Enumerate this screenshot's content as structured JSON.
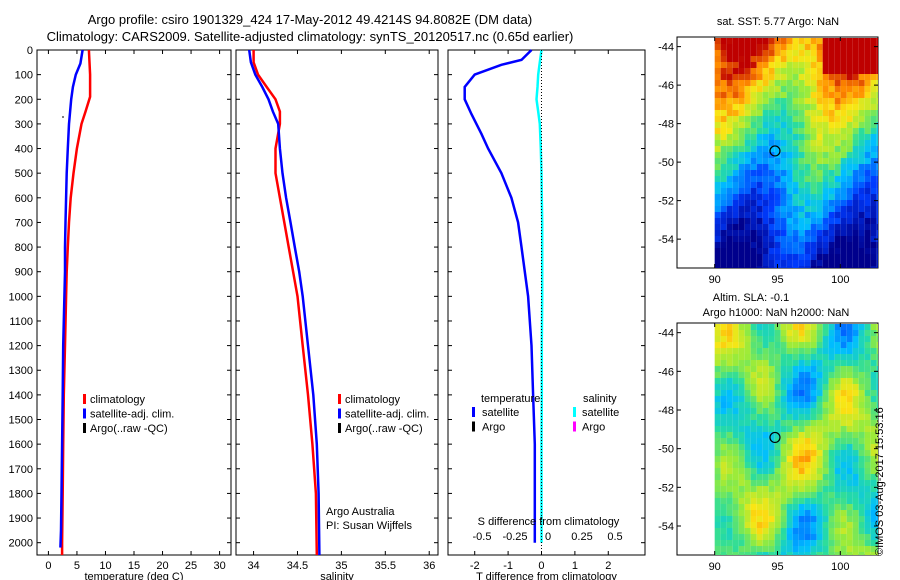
{
  "header": {
    "line1": "Argo profile: csiro 1901329_424 17-May-2012 49.4214S 94.8082E (DM data)",
    "line2": "Climatology: CARS2009. Satellite-adjusted climatology: synTS_20120517.nc (0.65d earlier)"
  },
  "colors": {
    "climatology": "#ff0000",
    "satellite": "#0000ff",
    "argo": "#000000",
    "sal_satellite": "#00ffff",
    "sal_argo": "#ff00ff"
  },
  "chart_data": [
    {
      "type": "line",
      "id": "temperature",
      "xlabel": "temperature (deg C)",
      "ylabel": "",
      "xlim": [
        -2,
        32
      ],
      "ylim": [
        2050,
        0
      ],
      "xticks": [
        0,
        5,
        10,
        15,
        20,
        25,
        30
      ],
      "yticks": [
        0,
        100,
        200,
        300,
        400,
        500,
        600,
        700,
        800,
        900,
        1000,
        1100,
        1200,
        1300,
        1400,
        1500,
        1600,
        1700,
        1800,
        1900,
        2000
      ],
      "legend": [
        "climatology",
        "satellite-adj. clim.",
        "Argo(..raw -QC)"
      ],
      "legend_position": "lower-center",
      "series": [
        {
          "name": "climatology",
          "depth": [
            0,
            50,
            100,
            150,
            190,
            250,
            300,
            400,
            500,
            600,
            700,
            800,
            900,
            1000,
            1200,
            1400,
            1600,
            1800,
            2000,
            2050
          ],
          "values": [
            7.1,
            7.2,
            7.3,
            7.3,
            7.3,
            6.5,
            5.8,
            5.0,
            4.4,
            3.9,
            3.6,
            3.4,
            3.2,
            3.1,
            2.9,
            2.7,
            2.6,
            2.5,
            2.4,
            2.4
          ]
        },
        {
          "name": "satellite-adj. clim.",
          "depth": [
            0,
            55,
            100,
            150,
            200,
            250,
            300,
            400,
            500,
            600,
            700,
            800,
            900,
            1000,
            1200,
            1400,
            1600,
            1800,
            1950,
            2020
          ],
          "values": [
            6.0,
            5.6,
            4.8,
            4.3,
            4.0,
            3.8,
            3.6,
            3.4,
            3.2,
            3.1,
            3.0,
            2.9,
            2.9,
            2.8,
            2.6,
            2.5,
            2.4,
            2.3,
            2.2,
            2.1
          ]
        }
      ]
    },
    {
      "type": "line",
      "id": "salinity",
      "xlabel": "salinity",
      "xlim": [
        33.8,
        36.1
      ],
      "ylim": [
        2050,
        0
      ],
      "xticks": [
        34,
        34.5,
        35,
        35.5,
        36
      ],
      "legend": [
        "climatology",
        "satellite-adj. clim.",
        "Argo(..raw -QC)"
      ],
      "legend_position": "lower-right",
      "annotations": [
        "Argo Australia",
        "PI: Susan Wijffels"
      ],
      "series": [
        {
          "name": "climatology",
          "depth": [
            0,
            50,
            100,
            150,
            200,
            250,
            300,
            400,
            500,
            600,
            700,
            800,
            900,
            1000,
            1200,
            1400,
            1600,
            1800,
            2050
          ],
          "values": [
            34.0,
            34.0,
            34.05,
            34.15,
            34.25,
            34.3,
            34.3,
            34.25,
            34.25,
            34.3,
            34.35,
            34.4,
            34.45,
            34.5,
            34.56,
            34.62,
            34.67,
            34.71,
            34.72
          ]
        },
        {
          "name": "satellite-adj. clim.",
          "depth": [
            0,
            50,
            100,
            150,
            200,
            250,
            300,
            400,
            500,
            600,
            700,
            800,
            900,
            1000,
            1200,
            1400,
            1600,
            1800,
            2050
          ],
          "values": [
            33.95,
            33.97,
            34.02,
            34.1,
            34.17,
            34.22,
            34.28,
            34.3,
            34.33,
            34.37,
            34.42,
            34.47,
            34.52,
            34.56,
            34.62,
            34.68,
            34.72,
            34.74,
            34.75
          ]
        }
      ]
    },
    {
      "type": "line",
      "id": "difference",
      "xlabel": "T difference from climatology",
      "toplabel": "S difference from climatology",
      "xlim": [
        -2.8,
        3.1
      ],
      "ylim": [
        2050,
        0
      ],
      "xticks": [
        -2,
        -1,
        0,
        1,
        2
      ],
      "topticks": [
        "-0.5",
        "-0.25",
        "0",
        "0.25",
        "0.5"
      ],
      "legend_left_title": "temperature",
      "legend_right_title": "salinity",
      "legend_left": [
        "satellite",
        "Argo"
      ],
      "legend_right": [
        "satellite",
        "Argo"
      ],
      "series": [
        {
          "name": "temperature satellite",
          "depth": [
            0,
            40,
            60,
            100,
            150,
            200,
            260,
            340,
            400,
            500,
            600,
            700,
            800,
            900,
            1000,
            1200,
            1400,
            1600,
            1800,
            2000
          ],
          "values": [
            -0.3,
            -0.6,
            -1.2,
            -2.0,
            -2.3,
            -2.3,
            -2.1,
            -1.8,
            -1.6,
            -1.2,
            -0.9,
            -0.7,
            -0.6,
            -0.5,
            -0.4,
            -0.3,
            -0.25,
            -0.2,
            -0.2,
            -0.2
          ]
        },
        {
          "name": "salinity satellite",
          "depth": [
            0,
            50,
            100,
            150,
            200,
            250,
            300,
            400,
            500,
            600,
            700,
            800,
            900,
            1000,
            1200,
            1400,
            1600,
            1800,
            2000
          ],
          "values": [
            0.0,
            -0.05,
            -0.1,
            -0.12,
            -0.15,
            -0.1,
            -0.05,
            -0.02,
            0.0,
            0.01,
            0.02,
            0.02,
            0.02,
            0.02,
            0.01,
            0.01,
            0.0,
            0.0,
            0.0
          ]
        }
      ]
    },
    {
      "type": "heatmap",
      "id": "sst-map",
      "title": "sat. SST: 5.77 Argo: NaN",
      "xlim": [
        87,
        103
      ],
      "ylim": [
        -55.5,
        -43.5
      ],
      "xticks": [
        90,
        95,
        100
      ],
      "yticks": [
        -44,
        -46,
        -48,
        -50,
        -52,
        -54
      ],
      "marker": {
        "lon": 94.8,
        "lat": -49.42
      }
    },
    {
      "type": "heatmap",
      "id": "sla-map",
      "title": "Altim. SLA: -0.1",
      "subtitle": "Argo h1000: NaN h2000: NaN",
      "xlim": [
        87,
        103
      ],
      "ylim": [
        -55.5,
        -43.5
      ],
      "xticks": [
        90,
        95,
        100
      ],
      "yticks": [
        -44,
        -46,
        -48,
        -50,
        -52,
        -54
      ],
      "marker": {
        "lon": 94.8,
        "lat": -49.42
      }
    }
  ],
  "footer": {
    "stamp": "©IMOS 03-Aug-2017 15:53:16"
  }
}
